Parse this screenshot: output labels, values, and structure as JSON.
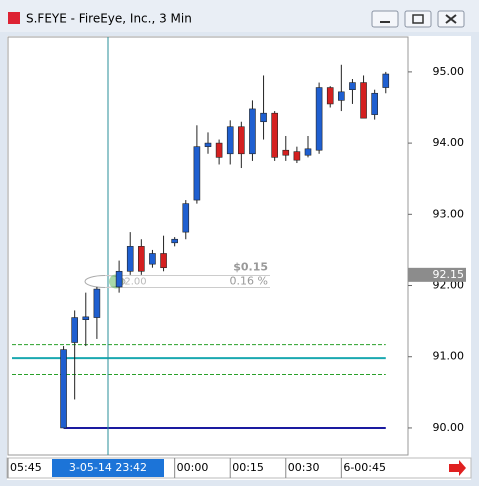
{
  "chart_data": {
    "type": "candlestick",
    "title": "S.FEYE - FireEye, Inc., 3 Min",
    "x": [
      -30,
      -27,
      -24,
      -21,
      -15,
      -12,
      -9,
      -6,
      -3,
      0,
      3,
      6,
      9,
      12,
      15,
      18,
      21,
      24,
      27,
      30,
      33,
      36,
      39,
      42,
      45,
      48,
      51,
      54,
      57
    ],
    "series": [
      {
        "up_color": "#1f5fd0",
        "down_color": "#d42020",
        "open": [
          90.0,
          91.2,
          91.52,
          91.55,
          91.98,
          92.2,
          92.55,
          92.3,
          92.45,
          92.6,
          92.75,
          93.2,
          93.95,
          94.0,
          93.85,
          94.23,
          93.85,
          94.3,
          94.42,
          93.9,
          93.88,
          93.83,
          93.9,
          94.78,
          94.6,
          94.75,
          94.85,
          94.4,
          94.78
        ],
        "high": [
          91.15,
          91.65,
          91.9,
          91.98,
          92.35,
          92.75,
          92.65,
          92.5,
          92.7,
          92.68,
          93.2,
          94.25,
          94.15,
          94.05,
          94.32,
          94.3,
          94.6,
          94.95,
          94.45,
          94.1,
          93.95,
          94.1,
          94.85,
          94.8,
          95.1,
          94.9,
          94.95,
          94.75,
          95.0
        ],
        "low": [
          90.0,
          90.4,
          91.15,
          91.25,
          91.9,
          92.15,
          92.15,
          92.25,
          92.2,
          92.55,
          92.65,
          93.15,
          93.85,
          93.7,
          93.7,
          93.65,
          93.75,
          94.05,
          93.75,
          93.75,
          93.72,
          93.8,
          93.85,
          94.5,
          94.45,
          94.55,
          94.35,
          94.33,
          94.7
        ],
        "close": [
          91.1,
          91.55,
          91.56,
          91.95,
          92.2,
          92.55,
          92.2,
          92.45,
          92.25,
          92.65,
          93.15,
          93.95,
          94.0,
          93.8,
          94.23,
          93.85,
          94.48,
          94.42,
          93.8,
          93.83,
          93.76,
          93.92,
          94.78,
          94.55,
          94.72,
          94.85,
          94.35,
          94.7,
          94.97
        ]
      }
    ],
    "xlim": [
      -45,
      63
    ],
    "xticks": [
      {
        "value": -45,
        "label": "05:45"
      },
      {
        "value": 0,
        "label": "00:00"
      },
      {
        "value": 15,
        "label": "00:15"
      },
      {
        "value": 30,
        "label": "00:30"
      },
      {
        "value": 45,
        "label": "6-00:45"
      }
    ],
    "ylim": [
      89.62,
      95.49
    ],
    "yticks": [
      {
        "value": 90,
        "label": "90.00"
      },
      {
        "value": 91,
        "label": "91.00"
      },
      {
        "value": 92,
        "label": "92.00"
      },
      {
        "value": 93,
        "label": "93.00"
      },
      {
        "value": 94,
        "label": "94.00"
      },
      {
        "value": 95,
        "label": "95.00"
      }
    ],
    "levels": [
      {
        "value": 91.17,
        "color": "#2aa02a",
        "dashed": true
      },
      {
        "value": 90.98,
        "color": "#1aa8b0",
        "dashed": false
      },
      {
        "value": 90.75,
        "color": "#2aa02a",
        "dashed": true
      },
      {
        "value": 90.0,
        "color": "#1a1aa0",
        "dashed": false
      }
    ],
    "cursor": {
      "x": -18,
      "label": "3-05-14 23:42"
    },
    "last_price": {
      "value": 92.15,
      "label": "92.15"
    },
    "measure": {
      "change": "$0.15",
      "percent": "0.16 %",
      "price": "92.00"
    }
  }
}
